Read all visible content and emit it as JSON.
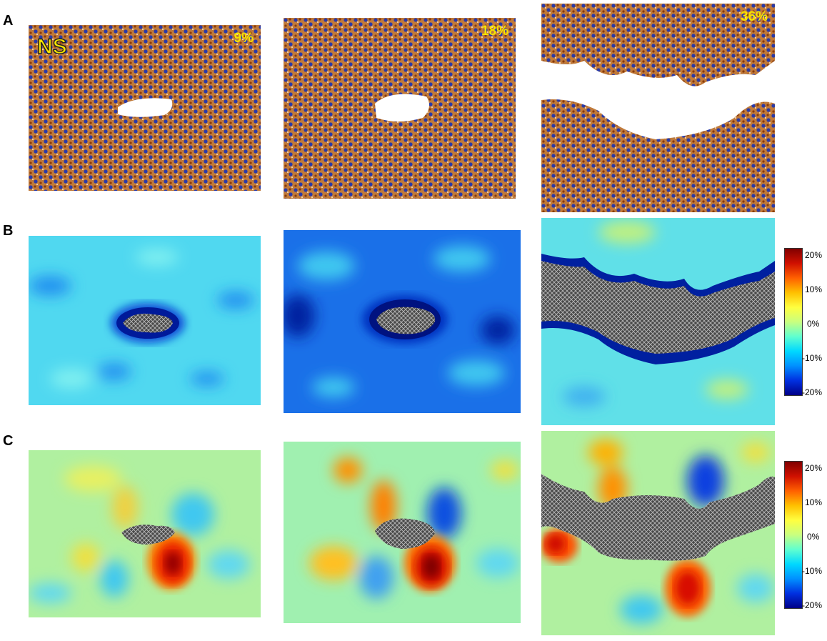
{
  "row_labels": [
    "A",
    "B",
    "C"
  ],
  "panel_a": {
    "ns_label": "NS",
    "strain_labels": [
      "9%",
      "18%",
      "36%"
    ]
  },
  "colorbar": {
    "ticks": [
      "20%",
      "10%",
      "0%",
      "-10%",
      "-20%"
    ]
  },
  "colors": {
    "particle_blue": "#2a3aa8",
    "particle_orange": "#b55a1a",
    "map_cyan": "#40d8f0",
    "map_blue": "#1040d0",
    "map_red": "#e02000",
    "hole_gray": "#555555"
  }
}
